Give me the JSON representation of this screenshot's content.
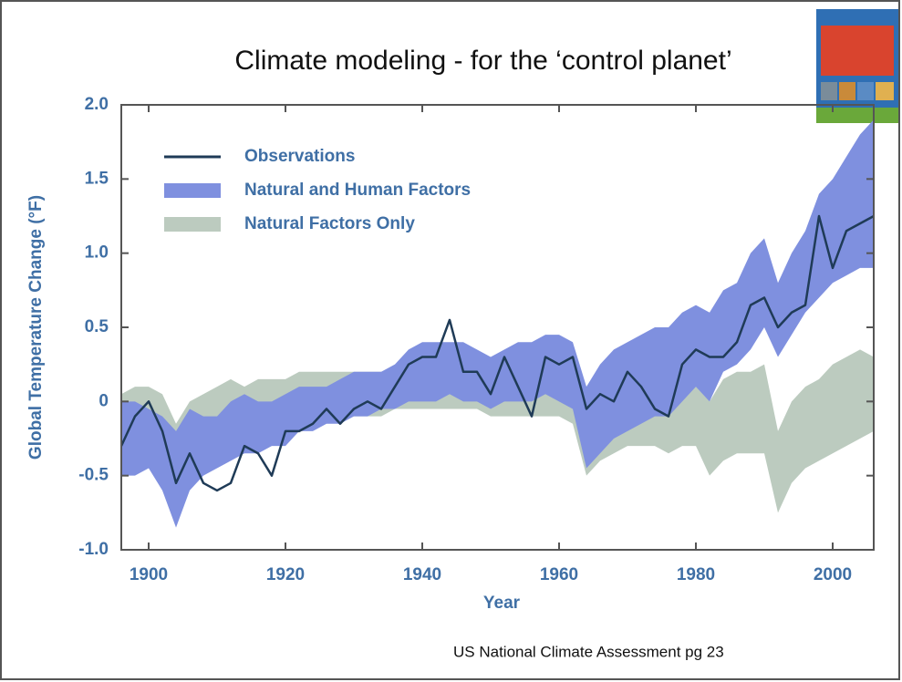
{
  "slide": {
    "title": "Climate modeling - for the ‘control planet’",
    "footer": "US National Climate Assessment pg 23"
  },
  "chart_data": {
    "type": "line",
    "xlabel": "Year",
    "ylabel": "Global Temperature Change (°F)",
    "xlim": [
      1896,
      2006
    ],
    "ylim": [
      -1,
      2
    ],
    "xticks": [
      1900,
      1920,
      1940,
      1960,
      1980,
      2000
    ],
    "yticks": [
      {
        "value": -1,
        "label": "-1.0"
      },
      -0.5,
      0,
      0.5,
      {
        "value": 1,
        "label": "1.0"
      },
      1.5,
      {
        "value": 2,
        "label": "2.0"
      }
    ],
    "legend": "upper left",
    "x": [
      1896,
      1898,
      1900,
      1902,
      1904,
      1906,
      1908,
      1910,
      1912,
      1914,
      1916,
      1918,
      1920,
      1922,
      1924,
      1926,
      1928,
      1930,
      1932,
      1934,
      1936,
      1938,
      1940,
      1942,
      1944,
      1946,
      1948,
      1950,
      1952,
      1954,
      1956,
      1958,
      1960,
      1962,
      1964,
      1966,
      1968,
      1970,
      1972,
      1974,
      1976,
      1978,
      1980,
      1982,
      1984,
      1986,
      1988,
      1990,
      1992,
      1994,
      1996,
      1998,
      2000,
      2002,
      2004,
      2006
    ],
    "series": [
      {
        "name": "Observations",
        "color": "#1f3b57",
        "values": [
          -0.3,
          -0.1,
          0.0,
          -0.2,
          -0.55,
          -0.35,
          -0.55,
          -0.6,
          -0.55,
          -0.3,
          -0.35,
          -0.5,
          -0.2,
          -0.2,
          -0.15,
          -0.05,
          -0.15,
          -0.05,
          0.0,
          -0.05,
          0.1,
          0.25,
          0.3,
          0.3,
          0.55,
          0.2,
          0.2,
          0.05,
          0.3,
          0.1,
          -0.1,
          0.3,
          0.25,
          0.3,
          -0.05,
          0.05,
          0.0,
          0.2,
          0.1,
          -0.05,
          -0.1,
          0.25,
          0.35,
          0.3,
          0.3,
          0.4,
          0.65,
          0.7,
          0.5,
          0.6,
          0.65,
          1.25,
          0.9,
          1.15,
          1.2,
          1.25
        ]
      },
      {
        "name": "Natural and Human Factors",
        "color": "#7f90df",
        "upper": [
          0.0,
          0.0,
          -0.05,
          -0.1,
          -0.2,
          -0.05,
          -0.1,
          -0.1,
          0.0,
          0.05,
          0.0,
          0.0,
          0.05,
          0.1,
          0.1,
          0.1,
          0.15,
          0.2,
          0.2,
          0.2,
          0.25,
          0.35,
          0.4,
          0.4,
          0.4,
          0.4,
          0.35,
          0.3,
          0.35,
          0.4,
          0.4,
          0.45,
          0.45,
          0.4,
          0.1,
          0.25,
          0.35,
          0.4,
          0.45,
          0.5,
          0.5,
          0.6,
          0.65,
          0.6,
          0.75,
          0.8,
          1.0,
          1.1,
          0.8,
          1.0,
          1.15,
          1.4,
          1.5,
          1.65,
          1.8,
          1.9
        ],
        "lower": [
          -0.5,
          -0.5,
          -0.45,
          -0.6,
          -0.85,
          -0.6,
          -0.5,
          -0.45,
          -0.4,
          -0.35,
          -0.35,
          -0.3,
          -0.3,
          -0.2,
          -0.2,
          -0.15,
          -0.15,
          -0.1,
          -0.1,
          -0.05,
          -0.05,
          0.0,
          0.0,
          0.0,
          0.05,
          0.0,
          0.0,
          -0.05,
          0.0,
          0.0,
          0.0,
          0.05,
          0.0,
          -0.05,
          -0.45,
          -0.35,
          -0.25,
          -0.2,
          -0.15,
          -0.1,
          -0.1,
          0.0,
          0.1,
          0.0,
          0.2,
          0.25,
          0.35,
          0.5,
          0.3,
          0.45,
          0.6,
          0.7,
          0.8,
          0.85,
          0.9,
          0.9
        ]
      },
      {
        "name": "Natural Factors Only",
        "color": "#bccbbf",
        "upper": [
          0.05,
          0.1,
          0.1,
          0.05,
          -0.15,
          0.0,
          0.05,
          0.1,
          0.15,
          0.1,
          0.15,
          0.15,
          0.15,
          0.2,
          0.2,
          0.2,
          0.2,
          0.2,
          0.2,
          0.2,
          0.2,
          0.25,
          0.25,
          0.25,
          0.3,
          0.3,
          0.3,
          0.3,
          0.3,
          0.3,
          0.3,
          0.3,
          0.3,
          0.25,
          0.0,
          0.05,
          0.1,
          0.15,
          0.2,
          0.2,
          0.15,
          0.2,
          0.25,
          0.0,
          0.15,
          0.2,
          0.2,
          0.25,
          -0.2,
          0.0,
          0.1,
          0.15,
          0.25,
          0.3,
          0.35,
          0.3
        ],
        "lower": [
          -0.35,
          -0.3,
          -0.3,
          -0.4,
          -0.6,
          -0.45,
          -0.35,
          -0.3,
          -0.3,
          -0.25,
          -0.25,
          -0.2,
          -0.2,
          -0.15,
          -0.15,
          -0.1,
          -0.1,
          -0.1,
          -0.1,
          -0.1,
          -0.05,
          -0.05,
          -0.05,
          -0.05,
          -0.05,
          -0.05,
          -0.05,
          -0.1,
          -0.1,
          -0.1,
          -0.1,
          -0.1,
          -0.1,
          -0.15,
          -0.5,
          -0.4,
          -0.35,
          -0.3,
          -0.3,
          -0.3,
          -0.35,
          -0.3,
          -0.3,
          -0.5,
          -0.4,
          -0.35,
          -0.35,
          -0.35,
          -0.75,
          -0.55,
          -0.45,
          -0.4,
          -0.35,
          -0.3,
          -0.25,
          -0.2
        ]
      }
    ]
  }
}
